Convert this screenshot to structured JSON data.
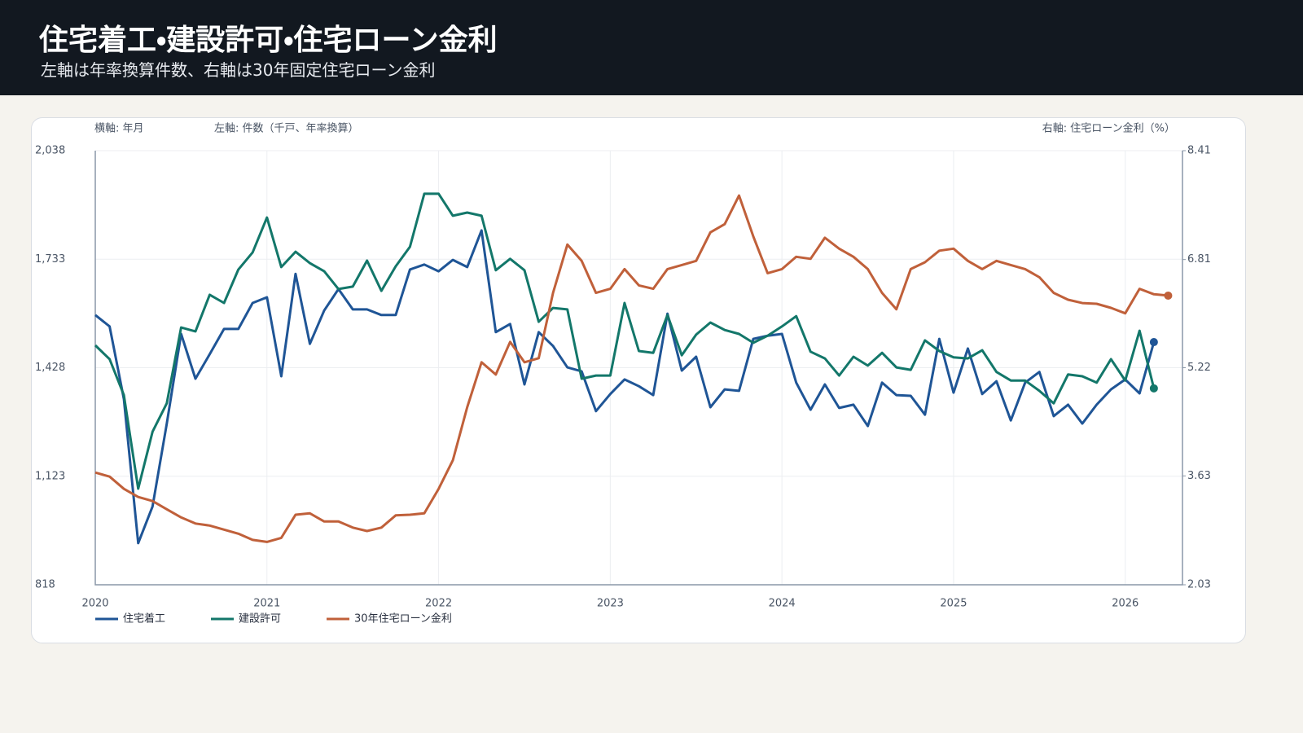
{
  "chart_data": {
    "type": "line",
    "title": "住宅着工・建設許可・住宅ローン金利",
    "subtitle": "左軸は年率換算件数、右軸は30年固定住宅ローン金利",
    "x_label": "横軸: 年月",
    "y_label": "左軸: 件数（千戸、年率換算）",
    "y2_label": "右軸: 住宅ローン金利（%）",
    "x": [
      "2020-01",
      "2020-02",
      "2020-03",
      "2020-04",
      "2020-05",
      "2020-06",
      "2020-07",
      "2020-08",
      "2020-09",
      "2020-10",
      "2020-11",
      "2020-12",
      "2021-01",
      "2021-02",
      "2021-03",
      "2021-04",
      "2021-05",
      "2021-06",
      "2021-07",
      "2021-08",
      "2021-09",
      "2021-10",
      "2021-11",
      "2021-12",
      "2022-01",
      "2022-02",
      "2022-03",
      "2022-04",
      "2022-05",
      "2022-06",
      "2022-07",
      "2022-08",
      "2022-09",
      "2022-10",
      "2022-11",
      "2022-12",
      "2023-01",
      "2023-02",
      "2023-03",
      "2023-04",
      "2023-05",
      "2023-06",
      "2023-07",
      "2023-08",
      "2023-09",
      "2023-10",
      "2023-11",
      "2023-12",
      "2024-01",
      "2024-02",
      "2024-03",
      "2024-04",
      "2024-05",
      "2024-06",
      "2024-07",
      "2024-08",
      "2024-09",
      "2024-10",
      "2024-11",
      "2024-12",
      "2025-01",
      "2025-02",
      "2025-03",
      "2025-04",
      "2025-05",
      "2025-06",
      "2025-07",
      "2025-08",
      "2025-09",
      "2025-10",
      "2025-11",
      "2025-12",
      "2026-01",
      "2026-02",
      "2026-03",
      "2026-04"
    ],
    "xlim": [
      "2020-01",
      "2026-05"
    ],
    "xticks": [
      2020,
      2021,
      2022,
      2023,
      2024,
      2025,
      2026
    ],
    "ylim": [
      818,
      2038
    ],
    "yticks": [
      {
        "value": 818,
        "label": "818"
      },
      {
        "value": 1123,
        "label": "1,123"
      },
      {
        "value": 1428,
        "label": "1,428"
      },
      {
        "value": 1733,
        "label": "1,733"
      },
      {
        "value": 2038,
        "label": "2,038"
      }
    ],
    "y2lim": [
      2.03,
      8.41
    ],
    "y2ticks": [
      2.03,
      3.63,
      5.22,
      6.81,
      8.41
    ],
    "grid": true,
    "legend": "bottom-left",
    "series": [
      {
        "name": "住宅着工",
        "color": "#1f5596",
        "values": [
          1576,
          1544,
          1340,
          935,
          1038,
          1271,
          1523,
          1397,
          1466,
          1537,
          1537,
          1610,
          1626,
          1404,
          1692,
          1495,
          1589,
          1649,
          1592,
          1592,
          1576,
          1576,
          1704,
          1718,
          1699,
          1731,
          1711,
          1814,
          1528,
          1551,
          1381,
          1528,
          1489,
          1429,
          1418,
          1306,
          1354,
          1395,
          1376,
          1351,
          1580,
          1420,
          1459,
          1317,
          1367,
          1363,
          1509,
          1518,
          1523,
          1386,
          1310,
          1381,
          1315,
          1324,
          1264,
          1386,
          1351,
          1349,
          1296,
          1509,
          1358,
          1482,
          1354,
          1390,
          1280,
          1386,
          1416,
          1292,
          1324,
          1271,
          1324,
          1367,
          1395,
          1356,
          1500,
          null
        ]
      },
      {
        "name": "建設許可",
        "color": "#13776a",
        "values": [
          1491,
          1452,
          1351,
          1088,
          1248,
          1328,
          1541,
          1530,
          1633,
          1610,
          1704,
          1752,
          1850,
          1711,
          1754,
          1722,
          1699,
          1649,
          1656,
          1729,
          1644,
          1713,
          1768,
          1917,
          1917,
          1855,
          1864,
          1855,
          1702,
          1734,
          1702,
          1557,
          1596,
          1592,
          1397,
          1406,
          1406,
          1610,
          1475,
          1470,
          1576,
          1463,
          1521,
          1555,
          1534,
          1523,
          1498,
          1518,
          1544,
          1573,
          1473,
          1454,
          1406,
          1459,
          1434,
          1470,
          1429,
          1422,
          1505,
          1475,
          1457,
          1454,
          1477,
          1416,
          1392,
          1392,
          1363,
          1328,
          1409,
          1404,
          1386,
          1452,
          1392,
          1532,
          1370,
          null
        ]
      },
      {
        "name": "30年住宅ローン金利",
        "color": "#c0603a",
        "axis": "y2",
        "values": [
          3.68,
          3.62,
          3.44,
          3.32,
          3.26,
          3.14,
          3.02,
          2.93,
          2.9,
          2.84,
          2.78,
          2.69,
          2.66,
          2.72,
          3.06,
          3.08,
          2.96,
          2.96,
          2.87,
          2.82,
          2.87,
          3.05,
          3.06,
          3.08,
          3.44,
          3.86,
          4.64,
          5.3,
          5.12,
          5.6,
          5.3,
          5.36,
          6.32,
          7.03,
          6.79,
          6.32,
          6.38,
          6.67,
          6.43,
          6.38,
          6.67,
          6.73,
          6.79,
          7.21,
          7.33,
          7.75,
          7.15,
          6.61,
          6.67,
          6.85,
          6.82,
          7.13,
          6.97,
          6.85,
          6.67,
          6.32,
          6.08,
          6.67,
          6.77,
          6.94,
          6.97,
          6.79,
          6.67,
          6.79,
          6.73,
          6.67,
          6.55,
          6.32,
          6.22,
          6.17,
          6.16,
          6.1,
          6.02,
          6.38,
          6.3,
          6.28
        ]
      }
    ]
  }
}
